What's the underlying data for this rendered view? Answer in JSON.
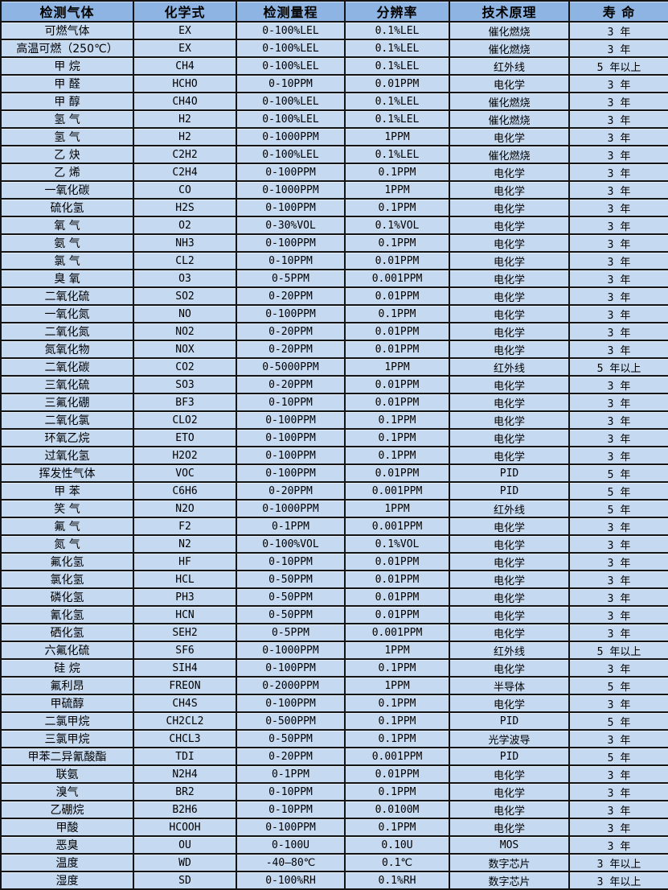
{
  "table": {
    "headers": [
      "检测气体",
      "化学式",
      "检测量程",
      "分辨率",
      "技术原理",
      "寿 命"
    ],
    "rows": [
      [
        "可燃气体",
        "EX",
        "0-100%LEL",
        "0.1%LEL",
        "催化燃烧",
        "3 年"
      ],
      [
        "高温可燃（250℃）",
        "EX",
        "0-100%LEL",
        "0.1%LEL",
        "催化燃烧",
        "3 年"
      ],
      [
        "甲 烷",
        "CH4",
        "0-100%LEL",
        "0.1%LEL",
        "红外线",
        "5 年以上"
      ],
      [
        "甲 醛",
        "HCHO",
        "0-10PPM",
        "0.01PPM",
        "电化学",
        "3 年"
      ],
      [
        "甲 醇",
        "CH4O",
        "0-100%LEL",
        "0.1%LEL",
        "催化燃烧",
        "3 年"
      ],
      [
        "氢 气",
        "H2",
        "0-100%LEL",
        "0.1%LEL",
        "催化燃烧",
        "3 年"
      ],
      [
        "氢 气",
        "H2",
        "0-1000PPM",
        "1PPM",
        "电化学",
        "3 年"
      ],
      [
        "乙 炔",
        "C2H2",
        "0-100%LEL",
        "0.1%LEL",
        "催化燃烧",
        "3 年"
      ],
      [
        "乙 烯",
        "C2H4",
        "0-100PPM",
        "0.1PPM",
        "电化学",
        "3 年"
      ],
      [
        "一氧化碳",
        "CO",
        "0-1000PPM",
        "1PPM",
        "电化学",
        "3 年"
      ],
      [
        "硫化氢",
        "H2S",
        "0-100PPM",
        "0.1PPM",
        "电化学",
        "3 年"
      ],
      [
        "氧 气",
        "O2",
        "0-30%VOL",
        "0.1%VOL",
        "电化学",
        "3 年"
      ],
      [
        "氨 气",
        "NH3",
        "0-100PPM",
        "0.1PPM",
        "电化学",
        "3 年"
      ],
      [
        "氯 气",
        "CL2",
        "0-10PPM",
        "0.01PPM",
        "电化学",
        "3 年"
      ],
      [
        "臭 氧",
        "O3",
        "0-5PPM",
        "0.001PPM",
        "电化学",
        "3 年"
      ],
      [
        "二氧化硫",
        "SO2",
        "0-20PPM",
        "0.01PPM",
        "电化学",
        "3 年"
      ],
      [
        "一氧化氮",
        "NO",
        "0-100PPM",
        "0.1PPM",
        "电化学",
        "3 年"
      ],
      [
        "二氧化氮",
        "NO2",
        "0-20PPM",
        "0.01PPM",
        "电化学",
        "3 年"
      ],
      [
        "氮氧化物",
        "NOX",
        "0-20PPM",
        "0.01PPM",
        "电化学",
        "3 年"
      ],
      [
        "二氧化碳",
        "CO2",
        "0-5000PPM",
        "1PPM",
        "红外线",
        "5 年以上"
      ],
      [
        "三氧化硫",
        "SO3",
        "0-20PPM",
        "0.01PPM",
        "电化学",
        "3 年"
      ],
      [
        "三氟化硼",
        "BF3",
        "0-10PPM",
        "0.01PPM",
        "电化学",
        "3 年"
      ],
      [
        "二氧化氯",
        "CLO2",
        "0-100PPM",
        "0.1PPM",
        "电化学",
        "3 年"
      ],
      [
        "环氧乙烷",
        "ETO",
        "0-100PPM",
        "0.1PPM",
        "电化学",
        "3 年"
      ],
      [
        "过氧化氢",
        "H2O2",
        "0-100PPM",
        "0.1PPM",
        "电化学",
        "3 年"
      ],
      [
        "挥发性气体",
        "VOC",
        "0-100PPM",
        "0.01PPM",
        "PID",
        "5 年"
      ],
      [
        "甲 苯",
        "C6H6",
        "0-20PPM",
        "0.001PPM",
        "PID",
        "5 年"
      ],
      [
        "笑 气",
        "N2O",
        "0-1000PPM",
        "1PPM",
        "红外线",
        "5 年"
      ],
      [
        "氟 气",
        "F2",
        "0-1PPM",
        "0.001PPM",
        "电化学",
        "3 年"
      ],
      [
        "氮 气",
        "N2",
        "0-100%VOL",
        "0.1%VOL",
        "电化学",
        "3 年"
      ],
      [
        "氟化氢",
        "HF",
        "0-10PPM",
        "0.01PPM",
        "电化学",
        "3 年"
      ],
      [
        "氯化氢",
        "HCL",
        "0-50PPM",
        "0.01PPM",
        "电化学",
        "3 年"
      ],
      [
        "磷化氢",
        "PH3",
        "0-50PPM",
        "0.01PPM",
        "电化学",
        "3 年"
      ],
      [
        "氰化氢",
        "HCN",
        "0-50PPM",
        "0.01PPM",
        "电化学",
        "3 年"
      ],
      [
        "硒化氢",
        "SEH2",
        "0-5PPM",
        "0.001PPM",
        "电化学",
        "3 年"
      ],
      [
        "六氟化硫",
        "SF6",
        "0-1000PPM",
        "1PPM",
        "红外线",
        "5 年以上"
      ],
      [
        "硅 烷",
        "SIH4",
        "0-100PPM",
        "0.1PPM",
        "电化学",
        "3 年"
      ],
      [
        "氟利昂",
        "FREON",
        "0-2000PPM",
        "1PPM",
        "半导体",
        "5 年"
      ],
      [
        "甲硫醇",
        "CH4S",
        "0-100PPM",
        "0.1PPM",
        "电化学",
        "3 年"
      ],
      [
        "二氯甲烷",
        "CH2CL2",
        "0-500PPM",
        "0.1PPM",
        "PID",
        "5 年"
      ],
      [
        "三氯甲烷",
        "CHCL3",
        "0-50PPM",
        "0.1PPM",
        "光学波导",
        "3 年"
      ],
      [
        "甲苯二异氰酸酯",
        "TDI",
        "0-20PPM",
        "0.001PPM",
        "PID",
        "5 年"
      ],
      [
        "联氨",
        "N2H4",
        "0-1PPM",
        "0.01PPM",
        "电化学",
        "3 年"
      ],
      [
        "溴气",
        "BR2",
        "0-10PPM",
        "0.1PPM",
        "电化学",
        "3 年"
      ],
      [
        "乙硼烷",
        "B2H6",
        "0-10PPM",
        "0.0100M",
        "电化学",
        "3 年"
      ],
      [
        "甲酸",
        "HCOOH",
        "0-100PPM",
        "0.1PPM",
        "电化学",
        "3 年"
      ],
      [
        "恶臭",
        "OU",
        "0-100U",
        "0.10U",
        "MOS",
        "3 年"
      ],
      [
        "温度",
        "WD",
        "-40—80℃",
        "0.1℃",
        "数字芯片",
        "3 年以上"
      ],
      [
        "湿度",
        "SD",
        "0-100%RH",
        "0.1%RH",
        "数字芯片",
        "3 年以上"
      ]
    ]
  },
  "colors": {
    "header_bg": "#8db4e2",
    "row_bg": "#c5d9f1",
    "border": "#141414",
    "text": "#000000"
  }
}
